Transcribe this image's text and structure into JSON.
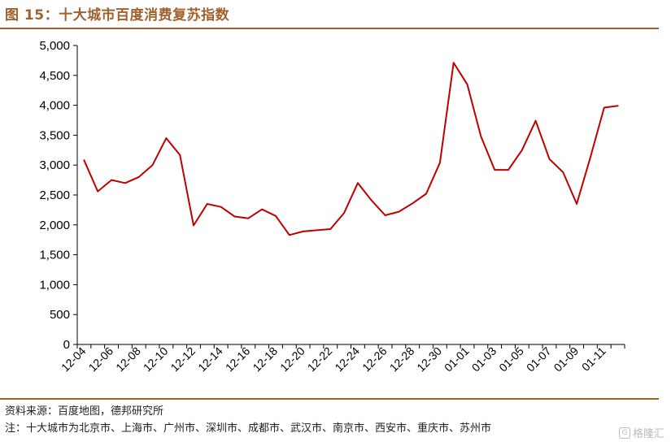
{
  "title": "图 15：十大城市百度消费复苏指数",
  "source": "资料来源：百度地图，德邦研究所",
  "footnote": "注：十大城市为北京市、上海市、广州市、深圳市、成都市、武汉市、南京市、西安市、重庆市、苏州市",
  "watermark": "格隆汇",
  "colors": {
    "title": "#a0612c",
    "rule": "#a0612c",
    "line": "#c00000",
    "axis": "#000000"
  },
  "chart_data": {
    "type": "line",
    "title": "",
    "xlabel": "",
    "ylabel": "",
    "ylim": [
      0,
      5000
    ],
    "yticks": [
      0,
      500,
      1000,
      1500,
      2000,
      2500,
      3000,
      3500,
      4000,
      4500,
      5000
    ],
    "ytick_labels": [
      "0",
      "500",
      "1,000",
      "1,500",
      "2,000",
      "2,500",
      "3,000",
      "3,500",
      "4,000",
      "4,500",
      "5,000"
    ],
    "xtick_labels": [
      "12-04",
      "12-06",
      "12-08",
      "12-10",
      "12-12",
      "12-14",
      "12-16",
      "12-18",
      "12-20",
      "12-22",
      "12-24",
      "12-26",
      "12-28",
      "12-30",
      "01-01",
      "01-03",
      "01-05",
      "01-07",
      "01-09",
      "01-11"
    ],
    "grid": false,
    "legend": "none",
    "x": [
      "12-04",
      "12-05",
      "12-06",
      "12-07",
      "12-08",
      "12-09",
      "12-10",
      "12-11",
      "12-12",
      "12-13",
      "12-14",
      "12-15",
      "12-16",
      "12-17",
      "12-18",
      "12-19",
      "12-20",
      "12-21",
      "12-22",
      "12-23",
      "12-24",
      "12-25",
      "12-26",
      "12-27",
      "12-28",
      "12-29",
      "12-30",
      "12-31",
      "01-01",
      "01-02",
      "01-03",
      "01-04",
      "01-05",
      "01-06",
      "01-07",
      "01-08",
      "01-09",
      "01-10",
      "01-11",
      "01-12"
    ],
    "series": [
      {
        "values": [
          3080,
          2560,
          2750,
          2700,
          2800,
          3000,
          3450,
          3170,
          1990,
          2350,
          2300,
          2140,
          2110,
          2260,
          2150,
          1830,
          1890,
          1910,
          1930,
          2200,
          2700,
          2410,
          2160,
          2220,
          2360,
          2520,
          3040,
          4710,
          4350,
          3480,
          2920,
          2920,
          3250,
          3740,
          3100,
          2880,
          2350,
          3130,
          3960,
          3990
        ]
      }
    ]
  }
}
